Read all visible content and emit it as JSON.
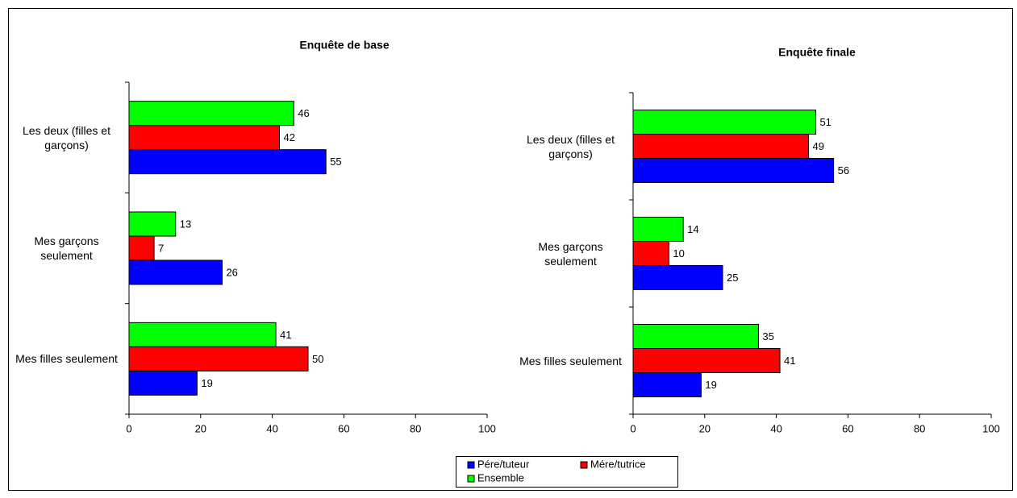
{
  "chart_data": [
    {
      "type": "bar",
      "orientation": "horizontal",
      "title": "Enquête de base",
      "categories": [
        "Les deux (filles et garçons)",
        "Mes garçons seulement",
        "Mes filles seulement"
      ],
      "series": [
        {
          "name": "Pére/tuteur",
          "color": "#0000ff",
          "values": [
            55,
            26,
            19
          ]
        },
        {
          "name": "Mére/tutrice",
          "color": "#ff0000",
          "values": [
            42,
            7,
            50
          ]
        },
        {
          "name": "Ensemble",
          "color": "#00ff00",
          "values": [
            46,
            13,
            41
          ]
        }
      ],
      "xlim": [
        0,
        100
      ],
      "xticks": [
        0,
        20,
        40,
        60,
        80,
        100
      ]
    },
    {
      "type": "bar",
      "orientation": "horizontal",
      "title": "Enquête finale",
      "categories": [
        "Les deux (filles et garçons)",
        "Mes garçons seulement",
        "Mes filles seulement"
      ],
      "series": [
        {
          "values": [
            56,
            25,
            19
          ]
        },
        {
          "values": [
            49,
            10,
            41
          ]
        },
        {
          "values": [
            51,
            14,
            35
          ]
        }
      ],
      "xlim": [
        0,
        100
      ],
      "xticks": [
        0,
        20,
        40,
        60,
        80,
        100
      ]
    }
  ]
}
